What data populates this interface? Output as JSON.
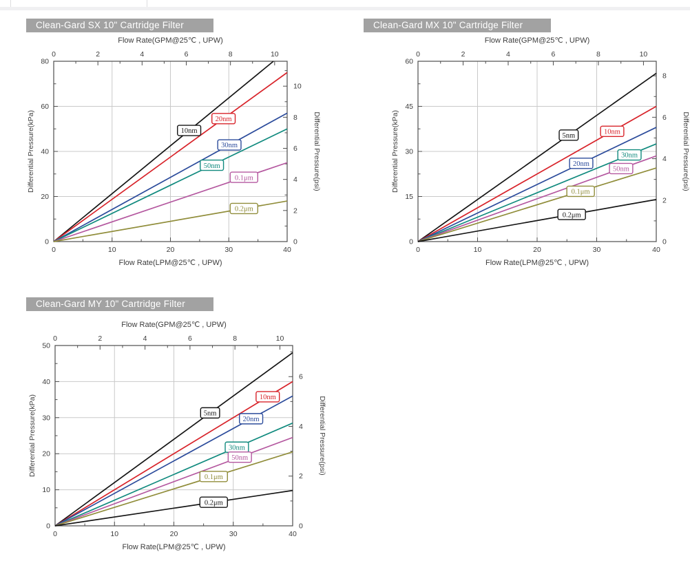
{
  "chart_data": [
    {
      "id": "sx",
      "type": "line",
      "title": "Clean-Gard SX 10\" Cartridge Filter",
      "x_top": {
        "label": "Flow Rate(GPM@25℃ ,  UPW)",
        "unit": "GPM",
        "range": [
          0,
          10
        ],
        "major": 2,
        "minor": 1,
        "lpm_per_gpm": 3.7854
      },
      "x_bottom": {
        "label": "Flow Rate(LPM@25℃ ,  UPW)",
        "unit": "LPM",
        "range": [
          0,
          40
        ],
        "major": 10,
        "minor": 5,
        "grid": [
          10,
          20,
          30
        ]
      },
      "y_left": {
        "label": "Differential Pressure(kPa)",
        "range": [
          0,
          80
        ],
        "major": 20,
        "minor": 10
      },
      "y_right": {
        "label": "Differential Pressure(psi)",
        "major": 2,
        "minor": 1,
        "kpa_per_psi": 6.8948
      },
      "series": [
        {
          "name": "10nm",
          "color": "#151515",
          "kpa_at_40lpm": 85,
          "label_at_lpm": 23.2
        },
        {
          "name": "20nm",
          "color": "#d8232a",
          "kpa_at_40lpm": 75,
          "label_at_lpm": 29.1
        },
        {
          "name": "30nm",
          "color": "#2b4b9b",
          "kpa_at_40lpm": 57,
          "label_at_lpm": 30.1
        },
        {
          "name": "50nm",
          "color": "#108a7e",
          "kpa_at_40lpm": 50,
          "label_at_lpm": 27.1
        },
        {
          "name": "0.1μm",
          "color": "#b4579f",
          "kpa_at_40lpm": 35,
          "label_at_lpm": 32.6
        },
        {
          "name": "0.2μm",
          "color": "#908d3a",
          "kpa_at_40lpm": 18,
          "label_at_lpm": 32.6
        }
      ]
    },
    {
      "id": "mx",
      "type": "line",
      "title": "Clean-Gard MX 10\" Cartridge Filter",
      "x_top": {
        "label": "Flow Rate(GPM@25℃ ,  UPW)",
        "unit": "GPM",
        "range": [
          0,
          10
        ],
        "major": 2,
        "minor": 1,
        "lpm_per_gpm": 3.7854
      },
      "x_bottom": {
        "label": "Flow Rate(LPM@25℃ ,  UPW)",
        "unit": "LPM",
        "range": [
          0,
          40
        ],
        "major": 10,
        "minor": 5,
        "grid": [
          10,
          20,
          30
        ]
      },
      "y_left": {
        "label": "Differential Pressure(kPa)",
        "range": [
          0,
          60
        ],
        "major": 15,
        "minor": 7.5
      },
      "y_right": {
        "label": "Differential Pressure(psi)",
        "major": 2,
        "minor": 1,
        "kpa_per_psi": 6.8948
      },
      "series": [
        {
          "name": "5nm",
          "color": "#151515",
          "kpa_at_40lpm": 56,
          "label_at_lpm": 25.3
        },
        {
          "name": "10nm",
          "color": "#d8232a",
          "kpa_at_40lpm": 45,
          "label_at_lpm": 32.6
        },
        {
          "name": "20nm",
          "color": "#2b4b9b",
          "kpa_at_40lpm": 38,
          "label_at_lpm": 27.4
        },
        {
          "name": "30nm",
          "color": "#108a7e",
          "kpa_at_40lpm": 32.5,
          "label_at_lpm": 35.5
        },
        {
          "name": "50nm",
          "color": "#b4579f",
          "kpa_at_40lpm": 28.5,
          "label_at_lpm": 34.1
        },
        {
          "name": "0.1μm",
          "color": "#908d3a",
          "kpa_at_40lpm": 24.5,
          "label_at_lpm": 27.3
        },
        {
          "name": "0.2μm",
          "color": "#151515",
          "kpa_at_40lpm": 14,
          "label_at_lpm": 25.8
        }
      ]
    },
    {
      "id": "my",
      "type": "line",
      "title": "Clean-Gard MY 10\" Cartridge Filter",
      "x_top": {
        "label": "Flow Rate(GPM@25℃ ,  UPW)",
        "unit": "GPM",
        "range": [
          0,
          10
        ],
        "major": 2,
        "minor": 1,
        "lpm_per_gpm": 3.7854
      },
      "x_bottom": {
        "label": "Flow Rate(LPM@25℃ ,  UPW)",
        "unit": "LPM",
        "range": [
          0,
          40
        ],
        "major": 10,
        "minor": 5,
        "grid": [
          10,
          20,
          30
        ]
      },
      "y_left": {
        "label": "Differential Pressure(kPa)",
        "range": [
          0,
          50
        ],
        "major": 10,
        "minor": 5
      },
      "y_right": {
        "label": "Differential Pressure(psi)",
        "major": 2,
        "minor": 1,
        "kpa_per_psi": 6.8948
      },
      "series": [
        {
          "name": "5nm",
          "color": "#151515",
          "kpa_at_40lpm": 48,
          "label_at_lpm": 26.1
        },
        {
          "name": "10nm",
          "color": "#d8232a",
          "kpa_at_40lpm": 40,
          "label_at_lpm": 35.8
        },
        {
          "name": "20nm",
          "color": "#2b4b9b",
          "kpa_at_40lpm": 36,
          "label_at_lpm": 33.0
        },
        {
          "name": "30nm",
          "color": "#108a7e",
          "kpa_at_40lpm": 28.5,
          "label_at_lpm": 30.6
        },
        {
          "name": "50nm",
          "color": "#b4579f",
          "kpa_at_40lpm": 24.5,
          "label_at_lpm": 31.1
        },
        {
          "name": "0.1μm",
          "color": "#908d3a",
          "kpa_at_40lpm": 20.5,
          "label_at_lpm": 26.7
        },
        {
          "name": "0.2μm",
          "color": "#151515",
          "kpa_at_40lpm": 9.8,
          "label_at_lpm": 26.7
        }
      ]
    }
  ]
}
